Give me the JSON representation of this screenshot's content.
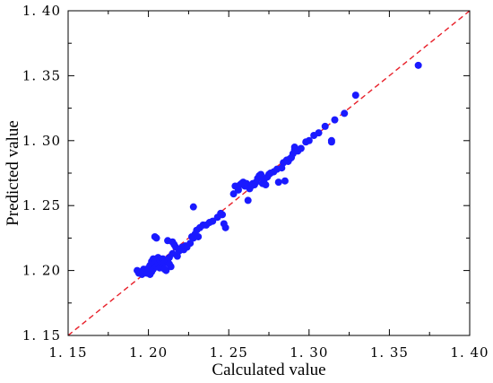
{
  "chart_data": {
    "type": "scatter",
    "xlabel": "Calculated value",
    "ylabel": "Predicted value",
    "xlim": [
      1.15,
      1.4
    ],
    "ylim": [
      1.15,
      1.4
    ],
    "xticks": [
      "1. 15",
      "1. 20",
      "1. 25",
      "1. 30",
      "1. 35",
      "1. 40"
    ],
    "yticks": [
      "1. 15",
      "1. 20",
      "1. 25",
      "1. 30",
      "1. 35",
      "1. 40"
    ],
    "xtick_values": [
      1.15,
      1.2,
      1.25,
      1.3,
      1.35,
      1.4
    ],
    "ytick_values": [
      1.15,
      1.2,
      1.25,
      1.3,
      1.35,
      1.4
    ],
    "grid": false,
    "reference_line": {
      "type": "y=x",
      "style": "dashed",
      "color": "#e8202a"
    },
    "point_color": "#1a1aff",
    "points": [
      [
        1.193,
        1.2
      ],
      [
        1.194,
        1.198
      ],
      [
        1.195,
        1.199
      ],
      [
        1.196,
        1.197
      ],
      [
        1.197,
        1.201
      ],
      [
        1.198,
        1.199
      ],
      [
        1.199,
        1.198
      ],
      [
        1.2,
        1.202
      ],
      [
        1.201,
        1.204
      ],
      [
        1.201,
        1.197
      ],
      [
        1.202,
        1.207
      ],
      [
        1.202,
        1.199
      ],
      [
        1.203,
        1.209
      ],
      [
        1.203,
        1.201
      ],
      [
        1.204,
        1.206
      ],
      [
        1.204,
        1.226
      ],
      [
        1.205,
        1.225
      ],
      [
        1.205,
        1.203
      ],
      [
        1.206,
        1.21
      ],
      [
        1.206,
        1.205
      ],
      [
        1.207,
        1.202
      ],
      [
        1.207,
        1.208
      ],
      [
        1.208,
        1.206
      ],
      [
        1.209,
        1.203
      ],
      [
        1.209,
        1.209
      ],
      [
        1.21,
        1.201
      ],
      [
        1.21,
        1.206
      ],
      [
        1.211,
        1.2
      ],
      [
        1.212,
        1.207
      ],
      [
        1.212,
        1.223
      ],
      [
        1.213,
        1.205
      ],
      [
        1.213,
        1.21
      ],
      [
        1.214,
        1.203
      ],
      [
        1.215,
        1.222
      ],
      [
        1.215,
        1.213
      ],
      [
        1.216,
        1.22
      ],
      [
        1.217,
        1.218
      ],
      [
        1.218,
        1.211
      ],
      [
        1.219,
        1.215
      ],
      [
        1.22,
        1.216
      ],
      [
        1.221,
        1.218
      ],
      [
        1.222,
        1.216
      ],
      [
        1.223,
        1.219
      ],
      [
        1.224,
        1.218
      ],
      [
        1.226,
        1.221
      ],
      [
        1.227,
        1.226
      ],
      [
        1.228,
        1.225
      ],
      [
        1.228,
        1.249
      ],
      [
        1.229,
        1.228
      ],
      [
        1.23,
        1.231
      ],
      [
        1.231,
        1.226
      ],
      [
        1.232,
        1.233
      ],
      [
        1.234,
        1.235
      ],
      [
        1.236,
        1.235
      ],
      [
        1.238,
        1.237
      ],
      [
        1.24,
        1.238
      ],
      [
        1.243,
        1.241
      ],
      [
        1.245,
        1.244
      ],
      [
        1.246,
        1.243
      ],
      [
        1.247,
        1.236
      ],
      [
        1.248,
        1.233
      ],
      [
        1.253,
        1.259
      ],
      [
        1.254,
        1.265
      ],
      [
        1.256,
        1.262
      ],
      [
        1.257,
        1.266
      ],
      [
        1.258,
        1.267
      ],
      [
        1.259,
        1.268
      ],
      [
        1.26,
        1.265
      ],
      [
        1.261,
        1.267
      ],
      [
        1.262,
        1.254
      ],
      [
        1.263,
        1.263
      ],
      [
        1.264,
        1.265
      ],
      [
        1.265,
        1.267
      ],
      [
        1.266,
        1.266
      ],
      [
        1.267,
        1.268
      ],
      [
        1.268,
        1.271
      ],
      [
        1.269,
        1.273
      ],
      [
        1.27,
        1.274
      ],
      [
        1.271,
        1.267
      ],
      [
        1.272,
        1.27
      ],
      [
        1.273,
        1.266
      ],
      [
        1.274,
        1.272
      ],
      [
        1.275,
        1.274
      ],
      [
        1.276,
        1.275
      ],
      [
        1.278,
        1.276
      ],
      [
        1.28,
        1.278
      ],
      [
        1.281,
        1.268
      ],
      [
        1.283,
        1.279
      ],
      [
        1.284,
        1.283
      ],
      [
        1.285,
        1.269
      ],
      [
        1.286,
        1.285
      ],
      [
        1.287,
        1.284
      ],
      [
        1.288,
        1.286
      ],
      [
        1.289,
        1.287
      ],
      [
        1.29,
        1.29
      ],
      [
        1.291,
        1.293
      ],
      [
        1.291,
        1.295
      ],
      [
        1.293,
        1.292
      ],
      [
        1.295,
        1.294
      ],
      [
        1.298,
        1.299
      ],
      [
        1.3,
        1.3
      ],
      [
        1.303,
        1.304
      ],
      [
        1.306,
        1.306
      ],
      [
        1.31,
        1.311
      ],
      [
        1.314,
        1.299
      ],
      [
        1.314,
        1.3
      ],
      [
        1.316,
        1.316
      ],
      [
        1.322,
        1.321
      ],
      [
        1.329,
        1.335
      ],
      [
        1.368,
        1.358
      ]
    ]
  }
}
